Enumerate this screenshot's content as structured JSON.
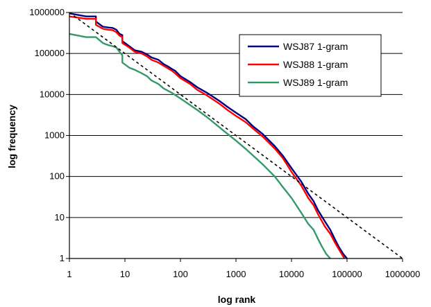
{
  "chart_data": {
    "type": "line",
    "xlabel": "log rank",
    "ylabel": "log frequency",
    "x_scale": "log",
    "y_scale": "log",
    "xlim": [
      1,
      1000000
    ],
    "ylim": [
      1,
      1000000
    ],
    "x_ticks": [
      "1",
      "10",
      "100",
      "1000",
      "10000",
      "100000",
      "1000000"
    ],
    "y_ticks": [
      "1",
      "10",
      "100",
      "1000",
      "10000",
      "100000",
      "1000000"
    ],
    "grid": "horizontal",
    "legend_position": "top-right",
    "series": [
      {
        "name": "WSJ87 1-gram",
        "color": "#000080",
        "style": "solid",
        "points": [
          [
            1,
            950000
          ],
          [
            2,
            800000
          ],
          [
            3,
            800000
          ],
          [
            3,
            600000
          ],
          [
            4,
            450000
          ],
          [
            5,
            430000
          ],
          [
            6,
            420000
          ],
          [
            7,
            380000
          ],
          [
            8,
            300000
          ],
          [
            9,
            280000
          ],
          [
            9,
            200000
          ],
          [
            12,
            150000
          ],
          [
            15,
            120000
          ],
          [
            20,
            110000
          ],
          [
            25,
            95000
          ],
          [
            30,
            80000
          ],
          [
            40,
            70000
          ],
          [
            50,
            55000
          ],
          [
            60,
            48000
          ],
          [
            70,
            42000
          ],
          [
            80,
            38000
          ],
          [
            100,
            28000
          ],
          [
            150,
            20000
          ],
          [
            200,
            15000
          ],
          [
            300,
            11000
          ],
          [
            500,
            7000
          ],
          [
            700,
            5000
          ],
          [
            1000,
            3600
          ],
          [
            1500,
            2500
          ],
          [
            2000,
            1700
          ],
          [
            3000,
            1100
          ],
          [
            5000,
            550
          ],
          [
            7000,
            320
          ],
          [
            10000,
            160
          ],
          [
            15000,
            75
          ],
          [
            20000,
            38
          ],
          [
            25000,
            25
          ],
          [
            30000,
            15
          ],
          [
            40000,
            8
          ],
          [
            50000,
            5
          ],
          [
            60000,
            3
          ],
          [
            70000,
            2
          ],
          [
            85000,
            1.3
          ],
          [
            100000,
            1
          ]
        ]
      },
      {
        "name": "WSJ88 1-gram",
        "color": "#ff0000",
        "style": "solid",
        "points": [
          [
            1,
            800000
          ],
          [
            2,
            700000
          ],
          [
            3,
            700000
          ],
          [
            3,
            500000
          ],
          [
            4,
            400000
          ],
          [
            5,
            380000
          ],
          [
            6,
            370000
          ],
          [
            7,
            330000
          ],
          [
            8,
            270000
          ],
          [
            9,
            250000
          ],
          [
            9,
            180000
          ],
          [
            12,
            140000
          ],
          [
            15,
            110000
          ],
          [
            20,
            100000
          ],
          [
            25,
            85000
          ],
          [
            30,
            70000
          ],
          [
            40,
            60000
          ],
          [
            50,
            50000
          ],
          [
            60,
            43000
          ],
          [
            70,
            38000
          ],
          [
            80,
            33000
          ],
          [
            100,
            25000
          ],
          [
            150,
            18000
          ],
          [
            200,
            13000
          ],
          [
            300,
            9500
          ],
          [
            500,
            6000
          ],
          [
            700,
            4200
          ],
          [
            1000,
            3000
          ],
          [
            1500,
            2100
          ],
          [
            2000,
            1500
          ],
          [
            3000,
            950
          ],
          [
            5000,
            480
          ],
          [
            7000,
            280
          ],
          [
            10000,
            130
          ],
          [
            15000,
            60
          ],
          [
            20000,
            30
          ],
          [
            25000,
            20
          ],
          [
            30000,
            12
          ],
          [
            40000,
            6
          ],
          [
            50000,
            4
          ],
          [
            60000,
            2.5
          ],
          [
            75000,
            1.5
          ],
          [
            90000,
            1
          ]
        ]
      },
      {
        "name": "WSJ89 1-gram",
        "color": "#339966",
        "style": "solid",
        "points": [
          [
            1,
            300000
          ],
          [
            2,
            250000
          ],
          [
            3,
            250000
          ],
          [
            4,
            180000
          ],
          [
            5,
            160000
          ],
          [
            6,
            150000
          ],
          [
            7,
            140000
          ],
          [
            8,
            110000
          ],
          [
            9,
            90000
          ],
          [
            9,
            60000
          ],
          [
            12,
            45000
          ],
          [
            15,
            40000
          ],
          [
            20,
            33000
          ],
          [
            25,
            28000
          ],
          [
            30,
            22000
          ],
          [
            40,
            18000
          ],
          [
            50,
            14000
          ],
          [
            70,
            11000
          ],
          [
            100,
            8000
          ],
          [
            150,
            5500
          ],
          [
            200,
            4200
          ],
          [
            300,
            2800
          ],
          [
            500,
            1600
          ],
          [
            700,
            1100
          ],
          [
            1000,
            750
          ],
          [
            1500,
            470
          ],
          [
            2000,
            330
          ],
          [
            3000,
            200
          ],
          [
            5000,
            100
          ],
          [
            7000,
            55
          ],
          [
            10000,
            30
          ],
          [
            15000,
            13
          ],
          [
            20000,
            7
          ],
          [
            25000,
            5
          ],
          [
            30000,
            3
          ],
          [
            35000,
            2
          ],
          [
            42000,
            1.3
          ],
          [
            50000,
            1
          ]
        ]
      },
      {
        "name": "",
        "color": "#000000",
        "style": "dashed",
        "points": [
          [
            1,
            1000000
          ],
          [
            1000000,
            1
          ]
        ]
      }
    ]
  }
}
